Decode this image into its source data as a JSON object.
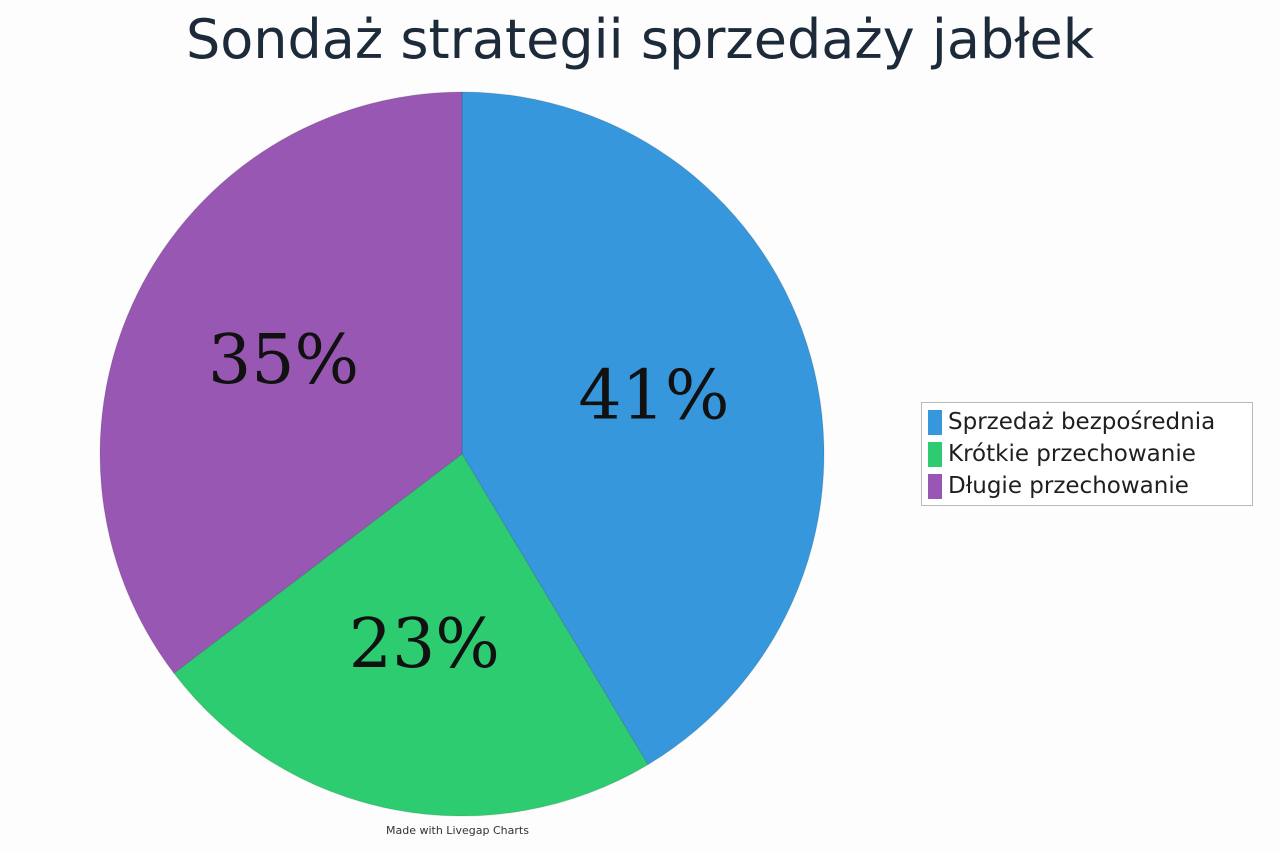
{
  "chart_data": {
    "type": "pie",
    "title": "Sondaż strategii sprzedaży jabłek",
    "categories": [
      "Sprzedaż bezpośrednia",
      "Krótkie przechowanie",
      "Długie przechowanie"
    ],
    "values": [
      41,
      23,
      35
    ],
    "labels": [
      "41%",
      "23%",
      "35%"
    ],
    "colors": [
      "#3797dc",
      "#2ecc71",
      "#9857b3"
    ],
    "legend_position": "right"
  },
  "footer": {
    "credit": "Made with Livegap Charts"
  }
}
